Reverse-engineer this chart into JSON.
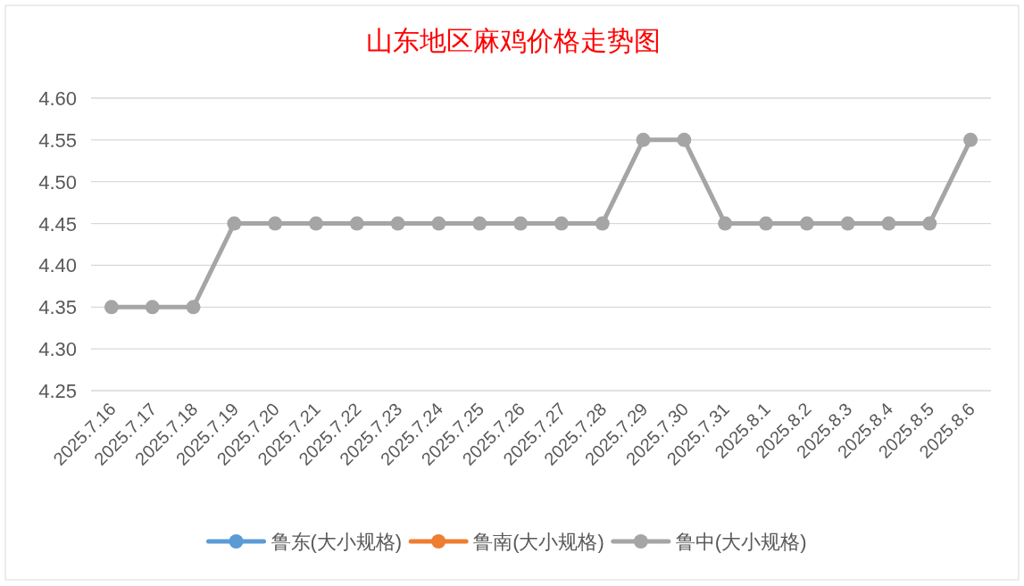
{
  "chart_data": {
    "type": "line",
    "title": "山东地区麻鸡价格走势图",
    "categories": [
      "2025.7.16",
      "2025.7.17",
      "2025.7.18",
      "2025.7.19",
      "2025.7.20",
      "2025.7.21",
      "2025.7.22",
      "2025.7.23",
      "2025.7.24",
      "2025.7.25",
      "2025.7.26",
      "2025.7.27",
      "2025.7.28",
      "2025.7.29",
      "2025.7.30",
      "2025.7.31",
      "2025.8.1",
      "2025.8.2",
      "2025.8.3",
      "2025.8.4",
      "2025.8.5",
      "2025.8.6"
    ],
    "series": [
      {
        "name": "鲁东(大小规格)",
        "color": "#5b9bd5",
        "values": [
          null,
          null,
          null,
          null,
          null,
          null,
          null,
          null,
          null,
          null,
          null,
          null,
          null,
          null,
          null,
          null,
          null,
          null,
          null,
          null,
          null,
          null
        ]
      },
      {
        "name": "鲁南(大小规格)",
        "color": "#ed7d31",
        "values": [
          null,
          null,
          null,
          null,
          null,
          null,
          null,
          null,
          null,
          null,
          null,
          null,
          null,
          null,
          null,
          null,
          null,
          null,
          null,
          null,
          null,
          null
        ]
      },
      {
        "name": "鲁中(大小规格)",
        "color": "#a5a5a5",
        "values": [
          4.35,
          4.35,
          4.35,
          4.45,
          4.45,
          4.45,
          4.45,
          4.45,
          4.45,
          4.45,
          4.45,
          4.45,
          4.45,
          4.55,
          4.55,
          4.45,
          4.45,
          4.45,
          4.45,
          4.45,
          4.45,
          4.55
        ]
      }
    ],
    "ylim": [
      4.25,
      4.6
    ],
    "yticks": [
      {
        "value": 4.25,
        "label": "4.25"
      },
      {
        "value": 4.3,
        "label": "4.30"
      },
      {
        "value": 4.35,
        "label": "4.35"
      },
      {
        "value": 4.4,
        "label": "4.40"
      },
      {
        "value": 4.45,
        "label": "4.45"
      },
      {
        "value": 4.5,
        "label": "4.50"
      },
      {
        "value": 4.55,
        "label": "4.55"
      },
      {
        "value": 4.6,
        "label": "4.60"
      }
    ],
    "grid": "y",
    "legend": "bottom",
    "marker": "circle",
    "line_style": "solid"
  }
}
